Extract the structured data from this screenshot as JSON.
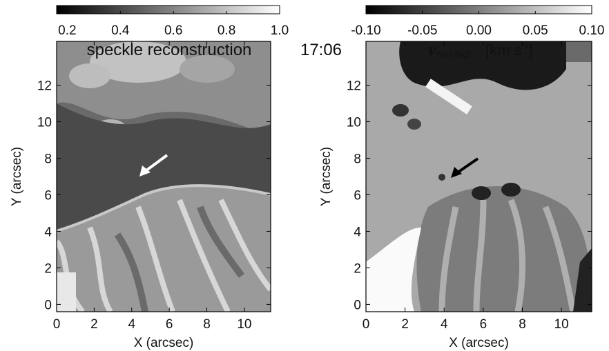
{
  "timestamp": "17:06",
  "chart_data": [
    {
      "type": "image",
      "title": "speckle reconstruction",
      "xlabel": "X (arcsec)",
      "ylabel": "Y (arcsec)",
      "xlim": [
        0,
        11.4
      ],
      "ylim": [
        -0.4,
        14.4
      ],
      "xticks": [
        0,
        2,
        4,
        6,
        8,
        10
      ],
      "yticks": [
        0,
        2,
        4,
        6,
        8,
        10,
        12
      ],
      "colorbar": {
        "lim": [
          0.16,
          1.0
        ],
        "ticks": [
          0.2,
          0.4,
          0.6,
          0.8,
          {
            "value": 1,
            "label": "1.0"
          }
        ],
        "colors": [
          "#000000",
          "#ffffff"
        ]
      }
    },
    {
      "type": "image",
      "title": {
        "symbol": "v",
        "subscript": "mid-high",
        "unit": "[km s",
        "unit_exponent": "-1",
        "unit_close": "]"
      },
      "xlabel": "X (arcsec)",
      "ylabel": "Y (arcsec)",
      "xlim": [
        0,
        11.55
      ],
      "ylim": [
        -0.4,
        14.4
      ],
      "xticks": [
        0,
        2,
        4,
        6,
        8,
        10
      ],
      "yticks": [
        0,
        2,
        4,
        6,
        8,
        10,
        12
      ],
      "colorbar": {
        "lim": [
          -0.1,
          0.1
        ],
        "ticks": [
          {
            "value": -0.1,
            "label": "-0.10"
          },
          -0.05,
          {
            "value": 0,
            "label": "0.00"
          },
          0.05,
          {
            "value": 0.1,
            "label": "0.10"
          }
        ],
        "colors": [
          "#000000",
          "#ffffff"
        ]
      }
    }
  ]
}
